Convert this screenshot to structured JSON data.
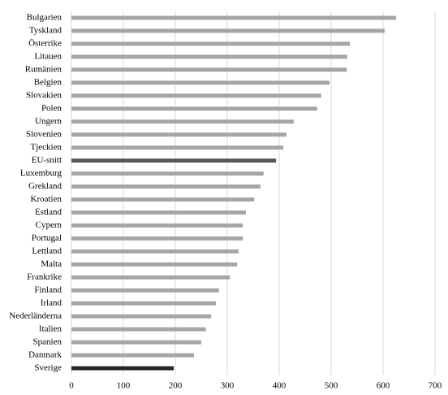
{
  "chart_data": {
    "type": "barh",
    "categories": [
      "Bulgarien",
      "Tyskland",
      "Österrike",
      "Litauen",
      "Rumänien",
      "Belgien",
      "Slovakien",
      "Polen",
      "Ungern",
      "Slovenien",
      "Tjeckien",
      "EU-snitt",
      "Luxemburg",
      "Grekland",
      "Kroatien",
      "Estland",
      "Cypern",
      "Portugal",
      "Lettland",
      "Malta",
      "Frankrike",
      "Finland",
      "Irland",
      "Nederländerna",
      "Italien",
      "Spanien",
      "Danmark",
      "Sverige"
    ],
    "values": [
      625,
      603,
      536,
      531,
      530,
      497,
      481,
      473,
      428,
      414,
      408,
      394,
      370,
      364,
      352,
      336,
      330,
      330,
      322,
      319,
      305,
      284,
      278,
      269,
      259,
      250,
      236,
      197
    ],
    "colors": [
      "#a6a6a6",
      "#a6a6a6",
      "#a6a6a6",
      "#a6a6a6",
      "#a6a6a6",
      "#a6a6a6",
      "#a6a6a6",
      "#a6a6a6",
      "#a6a6a6",
      "#a6a6a6",
      "#a6a6a6",
      "#595959",
      "#a6a6a6",
      "#a6a6a6",
      "#a6a6a6",
      "#a6a6a6",
      "#a6a6a6",
      "#a6a6a6",
      "#a6a6a6",
      "#a6a6a6",
      "#a6a6a6",
      "#a6a6a6",
      "#a6a6a6",
      "#a6a6a6",
      "#a6a6a6",
      "#a6a6a6",
      "#a6a6a6",
      "#262626"
    ],
    "xlim": [
      0,
      700
    ],
    "xticks": [
      0,
      100,
      200,
      300,
      400,
      500,
      600,
      700
    ],
    "grid": true
  }
}
